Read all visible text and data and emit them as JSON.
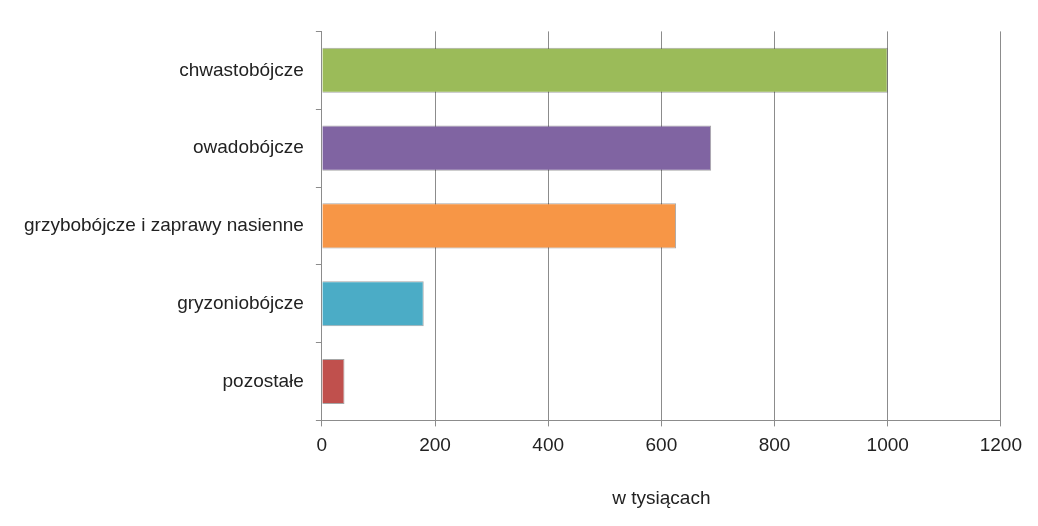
{
  "chart_data": {
    "type": "bar",
    "orientation": "horizontal",
    "xlabel": "w tysiącach",
    "categories": [
      "chwastobójcze",
      "owadobójcze",
      "grzybobójcze i zaprawy nasienne",
      "gryzoniobójcze",
      "pozostałe"
    ],
    "values": [
      1000,
      688,
      626,
      180,
      40
    ],
    "colors": [
      "#9bbb59",
      "#8064a2",
      "#f79646",
      "#4bacc6",
      "#c0504d"
    ],
    "xlim": [
      0,
      1200
    ],
    "xticks": [
      0,
      200,
      400,
      600,
      800,
      1000,
      1200
    ],
    "grid": "x",
    "legend": false
  }
}
